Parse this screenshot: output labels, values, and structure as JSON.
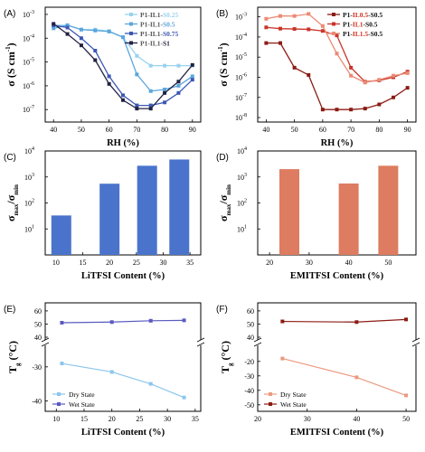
{
  "chart_data": [
    {
      "id": "A",
      "panel_label": "(A)",
      "type": "line",
      "xlabel": "RH (%)",
      "ylabel_main": "σ (S cm",
      "ylabel_sup": "-1",
      "ylabel_tail": ")",
      "ylog": true,
      "xlim": [
        37,
        93
      ],
      "ylim": [
        3e-08,
        0.002
      ],
      "xticks": [
        "40",
        "50",
        "60",
        "70",
        "80",
        "90"
      ],
      "yticks": [
        "10",
        "10",
        "10",
        "10",
        "10"
      ],
      "ytick_exp": [
        "-7",
        "-6",
        "-5",
        "-4",
        "-3"
      ],
      "series": [
        {
          "name_prefix": "P1-IL1-",
          "name_suffix": "S0.25",
          "color": "#9ad2f0",
          "x": [
            40,
            45,
            50,
            55,
            60,
            65,
            70,
            75,
            80,
            85,
            90
          ],
          "values": [
            0.00035,
            0.00035,
            0.00023,
            0.00023,
            0.0002,
            0.00011,
            1.8e-05,
            7e-06,
            7e-06,
            7e-06,
            7e-06
          ]
        },
        {
          "name_prefix": "P1-IL1-",
          "name_suffix": "S0.5",
          "color": "#5aa6dc",
          "x": [
            40,
            45,
            50,
            55,
            60,
            65,
            70,
            75,
            80,
            85,
            90
          ],
          "values": [
            0.00026,
            0.00035,
            0.00023,
            0.00021,
            0.00019,
            0.00011,
            3e-06,
            6e-07,
            7e-07,
            1e-06,
            2.5e-06
          ]
        },
        {
          "name_prefix": "P1-IL1-",
          "name_suffix": "S0.75",
          "color": "#3c58b4",
          "x": [
            40,
            45,
            50,
            55,
            60,
            65,
            70,
            75,
            80,
            85,
            90
          ],
          "values": [
            0.00035,
            0.00028,
            0.0001,
            3e-05,
            2.5e-06,
            4e-07,
            1.5e-07,
            1.5e-07,
            2e-07,
            5e-07,
            1.8e-06
          ]
        },
        {
          "name_prefix": "P1-IL1-",
          "name_suffix": "S1",
          "color": "#222244",
          "x": [
            40,
            45,
            50,
            55,
            60,
            65,
            70,
            75,
            80,
            85,
            90
          ],
          "values": [
            0.0004,
            0.00015,
            5e-05,
            1.2e-05,
            1.2e-06,
            2.5e-07,
            1.1e-07,
            1.1e-07,
            5e-07,
            1.5e-06,
            7.5e-06
          ]
        }
      ]
    },
    {
      "id": "B",
      "panel_label": "(B)",
      "type": "line",
      "xlabel": "RH (%)",
      "ylabel_main": "σ (S cm",
      "ylabel_sup": "-1",
      "ylabel_tail": ")",
      "ylog": true,
      "xlim": [
        37,
        93
      ],
      "ylim": [
        6e-09,
        0.003
      ],
      "xticks": [
        "40",
        "50",
        "60",
        "70",
        "80",
        "90"
      ],
      "yticks": [
        "10",
        "10",
        "10",
        "10",
        "10",
        "10"
      ],
      "ytick_exp": [
        "-8",
        "-7",
        "-6",
        "-5",
        "-4",
        "-3"
      ],
      "series": [
        {
          "name_prefix": "P1-",
          "name_mid": "IL0.5",
          "name_suffix": "-S0.5",
          "color": "#8b1c14",
          "x": [
            40,
            45,
            50,
            55,
            60,
            65,
            70,
            75,
            80,
            85,
            90
          ],
          "values": [
            5e-05,
            5e-05,
            3e-06,
            1.3e-06,
            2.5e-08,
            2.5e-08,
            2.5e-08,
            2.8e-08,
            4.5e-08,
            1e-07,
            3e-07
          ]
        },
        {
          "name_prefix": "P1-",
          "name_mid": "IL1",
          "name_suffix": "-S0.5",
          "color": "#c8352a",
          "x": [
            40,
            45,
            50,
            55,
            60,
            65,
            70,
            75,
            80,
            85,
            90
          ],
          "values": [
            0.0003,
            0.00026,
            0.00025,
            0.00024,
            0.0002,
            0.00012,
            3e-06,
            6e-07,
            7e-07,
            1e-06,
            1.9e-06
          ]
        },
        {
          "name_prefix": "P1-",
          "name_mid": "IL1.5",
          "name_suffix": "-S0.5",
          "color": "#ec8a74",
          "x": [
            40,
            45,
            50,
            55,
            60,
            65,
            70,
            75,
            80,
            85,
            90
          ],
          "values": [
            0.0008,
            0.0011,
            0.0011,
            0.0014,
            0.00035,
            1.5e-05,
            1.2e-06,
            5.5e-07,
            7.5e-07,
            1.2e-06,
            1.6e-06
          ]
        }
      ]
    },
    {
      "id": "C",
      "panel_label": "(C)",
      "type": "bar",
      "xlabel": "LiTFSI Content (%)",
      "ylabel_main": "σ",
      "ylabel_sub1": "max",
      "ylabel_mid": "/σ",
      "ylabel_sub2": "min",
      "ylog": true,
      "ylim": [
        1,
        10000
      ],
      "xlim": [
        8,
        37
      ],
      "xticks": [
        "10",
        "15",
        "20",
        "25",
        "30",
        "35"
      ],
      "yticks": [
        "10",
        "10",
        "10",
        "10"
      ],
      "ytick_exp": [
        "1",
        "2",
        "3",
        "4"
      ],
      "color": "#4a74cc",
      "x": [
        11,
        20,
        27,
        33
      ],
      "values": [
        33,
        550,
        2700,
        4700
      ]
    },
    {
      "id": "D",
      "panel_label": "(D)",
      "type": "bar",
      "xlabel": "EMITFSI Content (%)",
      "ylabel_main": "σ",
      "ylabel_sub1": "max",
      "ylabel_mid": "/σ",
      "ylabel_sub2": "min",
      "ylog": true,
      "ylim": [
        1,
        10000
      ],
      "xlim": [
        17,
        57
      ],
      "xticks": [
        "20",
        "30",
        "40",
        "50"
      ],
      "yticks": [
        "10",
        "10",
        "10",
        "10"
      ],
      "ytick_exp": [
        "1",
        "2",
        "3",
        "4"
      ],
      "color": "#dd7c60",
      "x": [
        25,
        40,
        50
      ],
      "values": [
        2000,
        560,
        2700
      ]
    },
    {
      "id": "E",
      "panel_label": "(E)",
      "type": "line",
      "xlabel": "LiTFSI Content (%)",
      "ylabel_main": "T",
      "ylabel_sub": "g",
      "ylabel_tail": " (°C)",
      "xlim": [
        8,
        36
      ],
      "xticks": [
        "10",
        "15",
        "20",
        "25",
        "30",
        "35"
      ],
      "upper_ylim": [
        40,
        62
      ],
      "upper_yticks": [
        "40",
        "50",
        "60"
      ],
      "upper_ytick_values": [
        40,
        50,
        60
      ],
      "lower_ylim": [
        -42,
        -25
      ],
      "lower_yticks": [
        "-30",
        "-40"
      ],
      "lower_ytick_values": [
        -30,
        -40
      ],
      "series": [
        {
          "name": "Dry State",
          "color": "#8cc6ee",
          "x": [
            11,
            20,
            27,
            33
          ],
          "values": [
            -29,
            -31.5,
            -35,
            -39
          ]
        },
        {
          "name": "Wet State",
          "color": "#5a5ac0",
          "x": [
            11,
            20,
            27,
            33
          ],
          "values": [
            51,
            51.5,
            52.5,
            52.8
          ]
        }
      ]
    },
    {
      "id": "F",
      "panel_label": "(F)",
      "type": "line",
      "xlabel": "EMITFSI Content (%)",
      "ylabel_main": "T",
      "ylabel_sub": "g",
      "ylabel_tail": " (°C)",
      "xlim": [
        20,
        52
      ],
      "xticks": [
        "20",
        "30",
        "40",
        "50"
      ],
      "upper_ylim": [
        40,
        62
      ],
      "upper_yticks": [
        "40",
        "50",
        "60"
      ],
      "upper_ytick_values": [
        40,
        50,
        60
      ],
      "lower_ylim": [
        -52,
        -12
      ],
      "lower_yticks": [
        "-20",
        "-30",
        "-40",
        "-50"
      ],
      "lower_ytick_values": [
        -20,
        -30,
        -40,
        -50
      ],
      "series": [
        {
          "name": "Dry State",
          "color": "#ec9a80",
          "x": [
            25,
            40,
            50
          ],
          "values": [
            -18,
            -31,
            -43.5
          ]
        },
        {
          "name": "Wet State",
          "color": "#8b1c14",
          "x": [
            25,
            40,
            50
          ],
          "values": [
            52,
            51.5,
            53.5
          ]
        }
      ]
    }
  ]
}
